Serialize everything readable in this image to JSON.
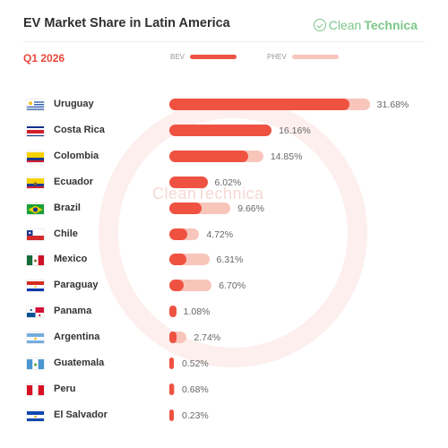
{
  "header": {
    "title": "EV Market Share in Latin America",
    "brand_light": "Clean",
    "brand_strong": "Technica",
    "quarter": "Q1 2026",
    "watermark": "CleanTechnica"
  },
  "colors": {
    "bev": "#ef5241",
    "phev": "#f8c5bb",
    "accent": "#e8483a"
  },
  "chart_data": {
    "type": "bar",
    "orientation": "horizontal",
    "stacked": true,
    "title": "EV Market Share in Latin America",
    "subtitle": "Q1 2026",
    "legend_placement": "top",
    "grid": false,
    "xlim": [
      0,
      32
    ],
    "categories": [
      "Uruguay",
      "Costa Rica",
      "Colombia",
      "Ecuador",
      "Brazil",
      "Chile",
      "Mexico",
      "Paraguay",
      "Panama",
      "Argentina",
      "Guatemala",
      "Peru",
      "El Salvador"
    ],
    "series": [
      {
        "name": "BEV",
        "values": [
          28.5,
          16.16,
          12.4,
          6.02,
          5.1,
          2.9,
          2.7,
          2.2,
          1.08,
          1.2,
          0.52,
          0.45,
          0.23
        ]
      },
      {
        "name": "PHEV",
        "values": [
          3.18,
          0.0,
          2.45,
          0.0,
          4.56,
          1.82,
          3.61,
          4.5,
          0.0,
          1.54,
          0.0,
          0.23,
          0.0
        ]
      }
    ],
    "totals": [
      31.68,
      16.16,
      14.85,
      6.02,
      9.66,
      4.72,
      6.31,
      6.7,
      1.08,
      2.74,
      0.52,
      0.68,
      0.23
    ],
    "labels": [
      "31.68%",
      "16.16%",
      "14.85%",
      "6.02%",
      "9.66%",
      "4.72%",
      "6.31%",
      "6.70%",
      "1.08%",
      "2.74%",
      "0.52%",
      "0.68%",
      "0.23%"
    ],
    "flags": [
      "uruguay-flag-icon",
      "costa-rica-flag-icon",
      "colombia-flag-icon",
      "ecuador-flag-icon",
      "brazil-flag-icon",
      "chile-flag-icon",
      "mexico-flag-icon",
      "paraguay-flag-icon",
      "panama-flag-icon",
      "argentina-flag-icon",
      "guatemala-flag-icon",
      "peru-flag-icon",
      "el-salvador-flag-icon"
    ]
  }
}
